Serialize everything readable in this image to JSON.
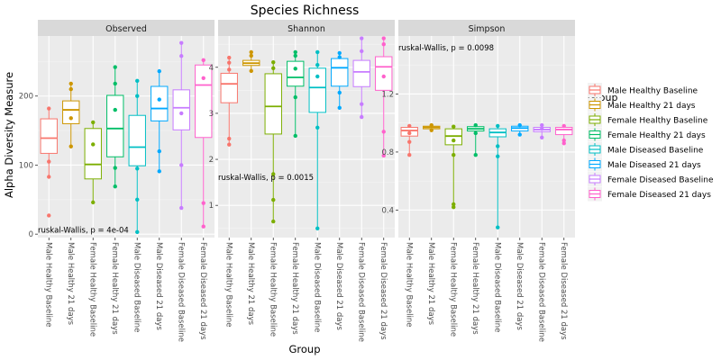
{
  "chart_data": {
    "type": "box",
    "title": "Species Richness",
    "xlabel": "Group",
    "ylabel": "Alpha Diversity Measure",
    "legend": {
      "title": "Group",
      "placement": "right",
      "entries": [
        {
          "name": "Male Healthy Baseline",
          "color": "#F8766D"
        },
        {
          "name": "Male Healthy 21 days",
          "color": "#CD9600"
        },
        {
          "name": "Female Healthy Baseline",
          "color": "#7CAE00"
        },
        {
          "name": "Female Healthy 21 days",
          "color": "#00BE67"
        },
        {
          "name": "Male Diseased Baseline",
          "color": "#00BFC4"
        },
        {
          "name": "Male Diseased 21 days",
          "color": "#00A9FF"
        },
        {
          "name": "Female Diseased Baseline",
          "color": "#C77CFF"
        },
        {
          "name": "Female Diseased 21 days",
          "color": "#FF61CC"
        }
      ]
    },
    "categories": [
      "Male Healthy Baseline",
      "Male Healthy 21 days",
      "Female Healthy Baseline",
      "Female Healthy 21 days",
      "Male Diseased Baseline",
      "Male Diseased 21 days",
      "Female Diseased Baseline",
      "Female Diseased 21 days"
    ],
    "panels": [
      {
        "name": "Observed",
        "ylim": [
          -5,
          287
        ],
        "yticks": [
          0,
          100,
          200
        ],
        "annotation": "ruskal-Wallis, p = 4e-04",
        "annotation_y": 2,
        "boxes": [
          {
            "q1": 117,
            "median": 139,
            "q3": 167,
            "wlow": 83,
            "whigh": 182,
            "out": [
              105,
              27
            ]
          },
          {
            "q1": 160,
            "median": 180,
            "q3": 193,
            "wlow": 127,
            "whigh": 218,
            "out": [
              210,
              168
            ]
          },
          {
            "q1": 80,
            "median": 101,
            "q3": 153,
            "wlow": 46,
            "whigh": 162,
            "out": [
              130
            ]
          },
          {
            "q1": 112,
            "median": 153,
            "q3": 201,
            "wlow": 69,
            "whigh": 242,
            "out": [
              218,
              96,
              180
            ]
          },
          {
            "q1": 99,
            "median": 126,
            "q3": 172,
            "wlow": 3,
            "whigh": 222,
            "out": [
              50,
              200,
              95
            ]
          },
          {
            "q1": 164,
            "median": 182,
            "q3": 214,
            "wlow": 91,
            "whigh": 236,
            "out": [
              120,
              195
            ]
          },
          {
            "q1": 151,
            "median": 183,
            "q3": 209,
            "wlow": 38,
            "whigh": 277,
            "out": [
              258,
              100,
              175
            ]
          },
          {
            "q1": 140,
            "median": 216,
            "q3": 245,
            "wlow": 11,
            "whigh": 252,
            "out": [
              45,
              226
            ]
          }
        ]
      },
      {
        "name": "Shannon",
        "ylim": [
          0.3,
          4.68
        ],
        "yticks": [
          1,
          2,
          3,
          4
        ],
        "annotation": "ruskal-Wallis, p = 0.0015",
        "annotation_y": 1.55,
        "boxes": [
          {
            "q1": 3.23,
            "median": 3.64,
            "q3": 3.87,
            "wlow": 2.32,
            "whigh": 4.21,
            "out": [
              2.45,
              3.95,
              4.1
            ]
          },
          {
            "q1": 4.04,
            "median": 4.09,
            "q3": 4.15,
            "wlow": 3.92,
            "whigh": 4.33,
            "out": [
              4.25
            ]
          },
          {
            "q1": 2.55,
            "median": 3.15,
            "q3": 3.86,
            "wlow": 0.65,
            "whigh": 4.11,
            "out": [
              1.12,
              1.68,
              3.98
            ]
          },
          {
            "q1": 3.59,
            "median": 3.78,
            "q3": 4.13,
            "wlow": 2.51,
            "whigh": 4.33,
            "out": [
              3.35,
              3.97,
              4.25
            ]
          },
          {
            "q1": 3.02,
            "median": 3.56,
            "q3": 3.98,
            "wlow": 0.5,
            "whigh": 4.33,
            "out": [
              2.69,
              4.05,
              3.8
            ]
          },
          {
            "q1": 3.59,
            "median": 3.99,
            "q3": 4.19,
            "wlow": 3.12,
            "whigh": 4.31,
            "out": [
              3.45,
              4.22
            ]
          },
          {
            "q1": 3.58,
            "median": 3.9,
            "q3": 4.15,
            "wlow": 2.92,
            "whigh": 4.63,
            "out": [
              3.2,
              4.35
            ]
          },
          {
            "q1": 3.5,
            "median": 4.01,
            "q3": 4.23,
            "wlow": 2.08,
            "whigh": 4.63,
            "out": [
              2.6,
              3.8,
              4.5
            ]
          }
        ]
      },
      {
        "name": "Simpson",
        "ylim": [
          0.21,
          1.6
        ],
        "yticks": [
          0.4,
          0.8,
          1.2
        ],
        "annotation": "ruskal-Wallis, p = 0.0098",
        "annotation_y": 1.5,
        "boxes": [
          {
            "q1": 0.91,
            "median": 0.948,
            "q3": 0.97,
            "wlow": 0.78,
            "whigh": 0.98,
            "out": [
              0.87,
              0.93
            ]
          },
          {
            "q1": 0.96,
            "median": 0.97,
            "q3": 0.978,
            "wlow": 0.95,
            "whigh": 0.985,
            "out": []
          },
          {
            "q1": 0.85,
            "median": 0.91,
            "q3": 0.96,
            "wlow": 0.42,
            "whigh": 0.975,
            "out": [
              0.44,
              0.78,
              0.88
            ]
          },
          {
            "q1": 0.945,
            "median": 0.96,
            "q3": 0.975,
            "wlow": 0.78,
            "whigh": 0.985,
            "out": [
              0.93
            ]
          },
          {
            "q1": 0.905,
            "median": 0.935,
            "q3": 0.96,
            "wlow": 0.28,
            "whigh": 0.98,
            "out": [
              0.77,
              0.84
            ]
          },
          {
            "q1": 0.945,
            "median": 0.965,
            "q3": 0.978,
            "wlow": 0.92,
            "whigh": 0.985,
            "out": []
          },
          {
            "q1": 0.94,
            "median": 0.955,
            "q3": 0.97,
            "wlow": 0.9,
            "whigh": 0.985,
            "out": [
              0.96
            ]
          },
          {
            "q1": 0.92,
            "median": 0.955,
            "q3": 0.97,
            "wlow": 0.86,
            "whigh": 0.98,
            "out": [
              0.88
            ]
          }
        ]
      }
    ]
  }
}
